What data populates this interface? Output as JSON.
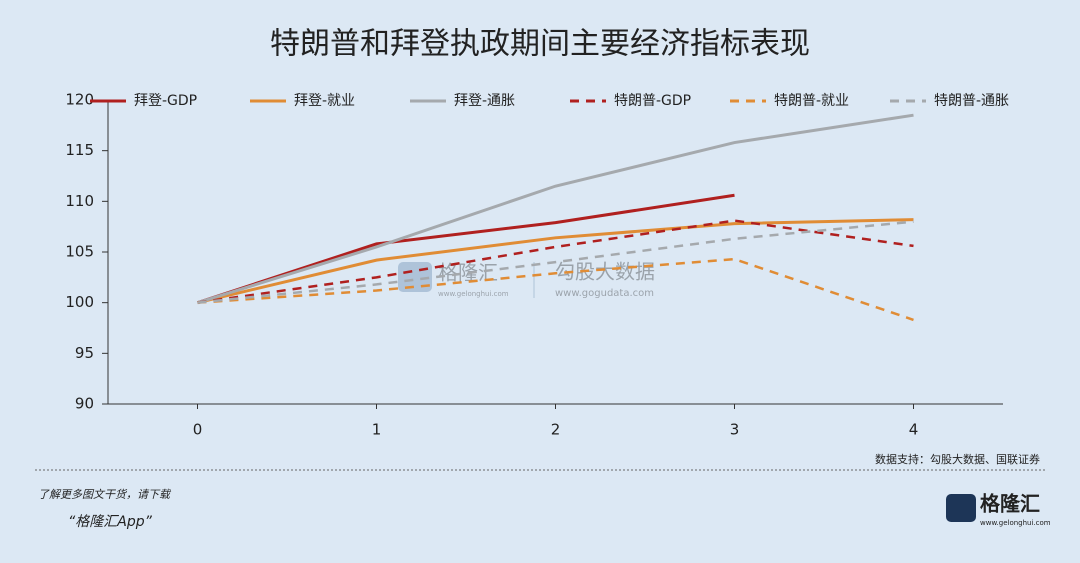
{
  "chart_data": {
    "type": "line",
    "title": "特朗普和拜登执政期间主要经济指标表现",
    "x": [
      0,
      1,
      2,
      3,
      4
    ],
    "series": [
      {
        "name": "拜登-GDP",
        "color": "#b0201f",
        "dashed": false,
        "values": [
          100,
          105.8,
          107.9,
          110.6,
          null
        ]
      },
      {
        "name": "拜登-就业",
        "color": "#e08c35",
        "dashed": false,
        "values": [
          100,
          104.2,
          106.4,
          107.8,
          108.2
        ]
      },
      {
        "name": "拜登-通胀",
        "color": "#a5a9ad",
        "dashed": false,
        "values": [
          100,
          105.5,
          111.5,
          115.8,
          118.5
        ]
      },
      {
        "name": "特朗普-GDP",
        "color": "#b0201f",
        "dashed": true,
        "values": [
          100,
          102.5,
          105.5,
          108.1,
          105.6
        ]
      },
      {
        "name": "特朗普-就业",
        "color": "#e08c35",
        "dashed": true,
        "values": [
          100,
          101.2,
          102.9,
          104.3,
          98.3
        ]
      },
      {
        "name": "特朗普-通胀",
        "color": "#a5a9ad",
        "dashed": true,
        "values": [
          100,
          101.8,
          104.0,
          106.3,
          108.0
        ]
      }
    ],
    "xlim": [
      -0.5,
      4.5
    ],
    "xticks": [
      0,
      1,
      2,
      3,
      4
    ],
    "ylim": [
      90,
      120
    ],
    "yticks": [
      90,
      95,
      100,
      105,
      110,
      115,
      120
    ],
    "grid": false,
    "legend": "top",
    "source": "数据支持：勾股大数据、国联证券"
  },
  "watermark": {
    "brand": "格隆汇",
    "brand_url": "www.gelonghui.com",
    "data": "勾股大数据",
    "data_url": "www.gogudata.com"
  },
  "footer": {
    "line1": "了解更多图文干货，请下载",
    "line2": "“格隆汇App”",
    "logo": "格隆汇",
    "logo_url": "www.gelonghui.com"
  }
}
